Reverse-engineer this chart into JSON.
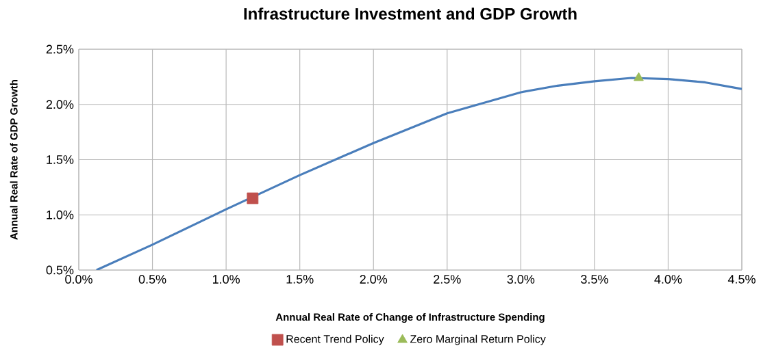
{
  "chart_data": {
    "type": "line",
    "title": "Infrastructure Investment and GDP Growth",
    "xlabel": "Annual Real Rate of Change of Infrastructure Spending",
    "ylabel": "Annual Real Rate of GDP Growth",
    "xlim": [
      0,
      4.5
    ],
    "ylim": [
      0.5,
      2.5
    ],
    "xticks": [
      {
        "value": 0,
        "label": "0.0%"
      },
      {
        "value": 0.5,
        "label": "0.5%"
      },
      {
        "value": 1,
        "label": "1.0%"
      },
      {
        "value": 1.5,
        "label": "1.5%"
      },
      {
        "value": 2,
        "label": "2.0%"
      },
      {
        "value": 2.5,
        "label": "2.5%"
      },
      {
        "value": 3,
        "label": "3.0%"
      },
      {
        "value": 3.5,
        "label": "3.5%"
      },
      {
        "value": 4,
        "label": "4.0%"
      },
      {
        "value": 4.5,
        "label": "4.5%"
      }
    ],
    "yticks": [
      {
        "value": 0.5,
        "label": "0.5%"
      },
      {
        "value": 1,
        "label": "1.0%"
      },
      {
        "value": 1.5,
        "label": "1.5%"
      },
      {
        "value": 2,
        "label": "2.0%"
      },
      {
        "value": 2.5,
        "label": "2.5%"
      }
    ],
    "grid": true,
    "legend": "bottom",
    "series": [
      {
        "color": "#4a7ebb",
        "marker": "none",
        "line_style": "solid",
        "x": [
          0.12,
          0.5,
          1.0,
          1.5,
          2.0,
          2.5,
          3.0,
          3.25,
          3.5,
          3.75,
          4.0,
          4.25,
          4.5
        ],
        "values": [
          0.5,
          0.73,
          1.05,
          1.36,
          1.65,
          1.92,
          2.11,
          2.17,
          2.21,
          2.24,
          2.23,
          2.2,
          2.14
        ]
      },
      {
        "type": "scatter",
        "name": "Recent Trend Policy",
        "color": "#c0504d",
        "marker": "square",
        "x": [
          1.18
        ],
        "values": [
          1.15
        ]
      },
      {
        "type": "scatter",
        "name": "Zero Marginal Return Policy",
        "color": "#9bbb59",
        "marker": "triangle",
        "x": [
          3.8
        ],
        "values": [
          2.24
        ]
      }
    ]
  }
}
